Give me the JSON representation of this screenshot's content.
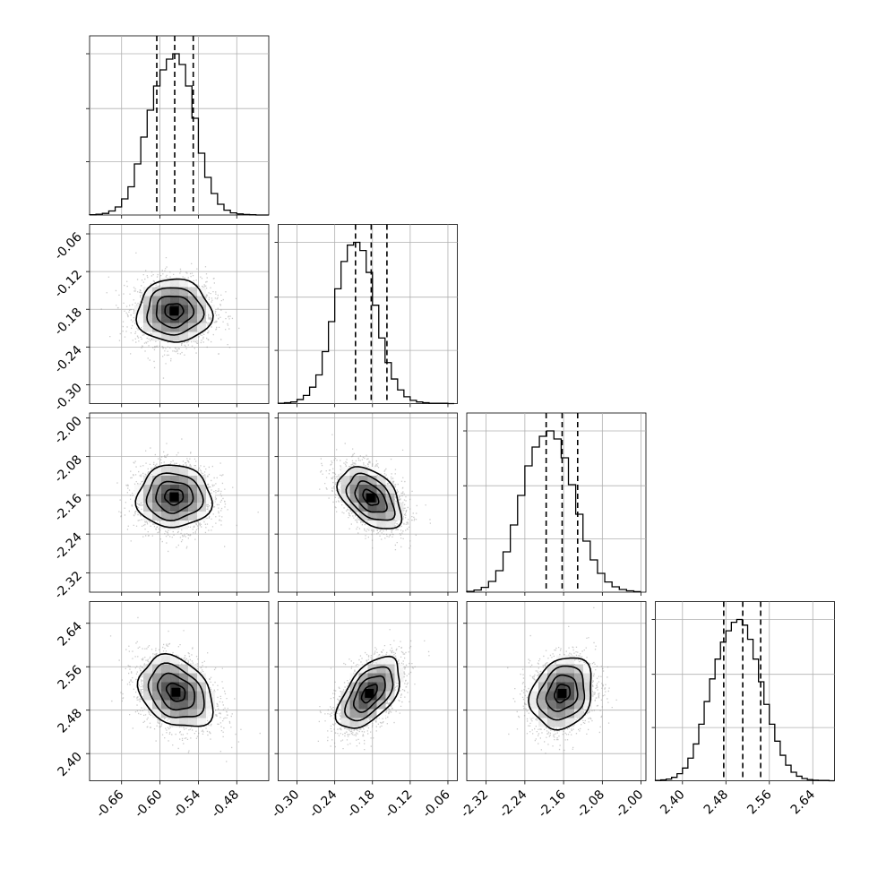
{
  "chart_data": {
    "type": "corner",
    "grid": true,
    "n_params": 4,
    "params": [
      {
        "index": 0,
        "xticks": [
          "-0.66",
          "-0.60",
          "-0.54",
          "-0.48"
        ],
        "xtick_values": [
          -0.66,
          -0.6,
          -0.54,
          -0.48
        ],
        "range": [
          -0.71,
          -0.43
        ]
      },
      {
        "index": 1,
        "xticks": [
          "-0.30",
          "-0.24",
          "-0.18",
          "-0.12",
          "-0.06"
        ],
        "xtick_values": [
          -0.3,
          -0.24,
          -0.18,
          -0.12,
          -0.06
        ],
        "yticks": [
          "-0.06",
          "-0.12",
          "-0.18",
          "-0.24",
          "-0.30"
        ],
        "range": [
          -0.33,
          -0.045
        ]
      },
      {
        "index": 2,
        "xticks": [
          "-2.32",
          "-2.24",
          "-2.16",
          "-2.08",
          "-2.00"
        ],
        "xtick_values": [
          -2.32,
          -2.24,
          -2.16,
          -2.08,
          -2.0
        ],
        "yticks": [
          "-2.00",
          "-2.08",
          "-2.16",
          "-2.24",
          "-2.32"
        ],
        "range": [
          -2.36,
          -1.99
        ]
      },
      {
        "index": 3,
        "xticks": [
          "2.40",
          "2.48",
          "2.56",
          "2.64"
        ],
        "xtick_values": [
          2.4,
          2.48,
          2.56,
          2.64
        ],
        "yticks": [
          "2.64",
          "2.56",
          "2.48",
          "2.40"
        ],
        "range": [
          2.35,
          2.68
        ]
      }
    ],
    "histograms": [
      {
        "param": 0,
        "quantiles": [
          -0.605,
          -0.577,
          -0.548
        ],
        "bins": [
          -0.71,
          -0.7,
          -0.69,
          -0.68,
          -0.67,
          -0.66,
          -0.65,
          -0.64,
          -0.63,
          -0.62,
          -0.61,
          -0.6,
          -0.59,
          -0.58,
          -0.57,
          -0.56,
          -0.55,
          -0.54,
          -0.53,
          -0.52,
          -0.51,
          -0.5,
          -0.49,
          -0.48,
          -0.47,
          -0.46,
          -0.45,
          -0.44,
          -0.43
        ],
        "counts": [
          1,
          3,
          6,
          15,
          30,
          60,
          105,
          190,
          290,
          390,
          480,
          540,
          580,
          600,
          560,
          480,
          360,
          230,
          140,
          80,
          40,
          18,
          8,
          4,
          2,
          1,
          0,
          0
        ]
      },
      {
        "param": 1,
        "quantiles": [
          -0.207,
          -0.182,
          -0.157
        ],
        "bins": [
          -0.33,
          -0.32,
          -0.31,
          -0.3,
          -0.29,
          -0.28,
          -0.27,
          -0.26,
          -0.25,
          -0.24,
          -0.23,
          -0.22,
          -0.21,
          -0.2,
          -0.19,
          -0.18,
          -0.17,
          -0.16,
          -0.15,
          -0.14,
          -0.13,
          -0.12,
          -0.11,
          -0.1,
          -0.09,
          -0.08,
          -0.07,
          -0.06,
          -0.05
        ],
        "counts": [
          1,
          3,
          6,
          15,
          30,
          60,
          105,
          190,
          300,
          420,
          520,
          580,
          590,
          560,
          480,
          360,
          240,
          150,
          90,
          50,
          25,
          12,
          6,
          3,
          1,
          1,
          1,
          0
        ]
      },
      {
        "param": 2,
        "quantiles": [
          -2.196,
          -2.163,
          -2.131
        ],
        "bins": [
          -2.36,
          -2.345,
          -2.33,
          -2.315,
          -2.3,
          -2.285,
          -2.27,
          -2.255,
          -2.24,
          -2.225,
          -2.21,
          -2.195,
          -2.18,
          -2.165,
          -2.15,
          -2.135,
          -2.12,
          -2.105,
          -2.09,
          -2.075,
          -2.06,
          -2.045,
          -2.03,
          -2.015,
          -2.0
        ],
        "counts": [
          3,
          8,
          18,
          40,
          80,
          150,
          250,
          360,
          470,
          540,
          580,
          600,
          570,
          500,
          400,
          290,
          190,
          120,
          70,
          38,
          20,
          10,
          5,
          2
        ]
      },
      {
        "param": 3,
        "quantiles": [
          2.476,
          2.511,
          2.544
        ],
        "bins": [
          2.35,
          2.36,
          2.37,
          2.38,
          2.39,
          2.4,
          2.41,
          2.42,
          2.43,
          2.44,
          2.45,
          2.46,
          2.47,
          2.48,
          2.49,
          2.5,
          2.51,
          2.52,
          2.53,
          2.54,
          2.55,
          2.56,
          2.57,
          2.58,
          2.59,
          2.6,
          2.61,
          2.62,
          2.63,
          2.64,
          2.65,
          2.66,
          2.67,
          2.68
        ],
        "counts": [
          1,
          3,
          6,
          12,
          25,
          45,
          80,
          130,
          200,
          280,
          360,
          430,
          490,
          530,
          560,
          570,
          550,
          500,
          430,
          350,
          270,
          200,
          140,
          90,
          55,
          30,
          16,
          8,
          4,
          2,
          1,
          1,
          0
        ]
      }
    ],
    "joint": [
      {
        "x_param": 0,
        "y_param": 1,
        "center": [
          -0.578,
          -0.183
        ],
        "sigma": [
          0.029,
          0.025
        ],
        "rho": 0.0
      },
      {
        "x_param": 0,
        "y_param": 2,
        "center": [
          -0.578,
          -2.163
        ],
        "sigma": [
          0.029,
          0.032
        ],
        "rho": 0.0
      },
      {
        "x_param": 1,
        "y_param": 2,
        "center": [
          -0.183,
          -2.165
        ],
        "sigma": [
          0.025,
          0.032
        ],
        "rho": -0.45
      },
      {
        "x_param": 0,
        "y_param": 3,
        "center": [
          -0.575,
          2.513
        ],
        "sigma": [
          0.029,
          0.033
        ],
        "rho": -0.3
      },
      {
        "x_param": 1,
        "y_param": 3,
        "center": [
          -0.185,
          2.511
        ],
        "sigma": [
          0.025,
          0.033
        ],
        "rho": 0.55
      },
      {
        "x_param": 2,
        "y_param": 3,
        "center": [
          -2.163,
          2.511
        ],
        "sigma": [
          0.032,
          0.033
        ],
        "rho": 0.2
      }
    ],
    "contour_levels_sigma": [
      0.5,
      1.0,
      1.5,
      2.0
    ]
  }
}
